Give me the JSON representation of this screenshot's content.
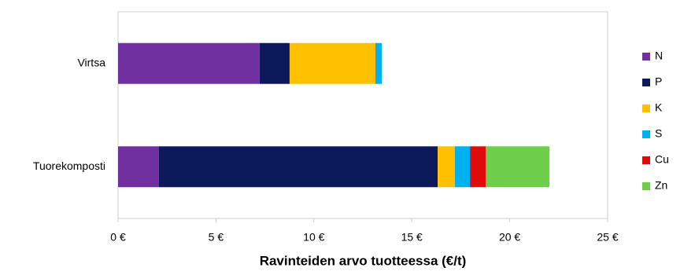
{
  "chart_data": {
    "type": "stacked-barh",
    "categories": [
      "Virtsa",
      "Tuorekomposti"
    ],
    "series": [
      {
        "name": "N",
        "color": "#7030a0",
        "values": [
          7.23,
          2.09
        ]
      },
      {
        "name": "P",
        "color": "#0c1a5c",
        "values": [
          1.53,
          14.23
        ]
      },
      {
        "name": "K",
        "color": "#ffc000",
        "values": [
          4.38,
          0.88
        ]
      },
      {
        "name": "S",
        "color": "#00b0f0",
        "values": [
          0.33,
          0.77
        ]
      },
      {
        "name": "Cu",
        "color": "#e00c0c",
        "values": [
          0,
          0.8
        ]
      },
      {
        "name": "Zn",
        "color": "#6fcf4a",
        "values": [
          0,
          3.26
        ]
      }
    ],
    "xlabel": "Ravinteiden arvo tuotteessa (€/t)",
    "xlim": [
      0,
      25
    ],
    "xticks": [
      {
        "value": 0,
        "label": "0 €"
      },
      {
        "value": 5,
        "label": "5 €"
      },
      {
        "value": 10,
        "label": "10 €"
      },
      {
        "value": 15,
        "label": "15 €"
      },
      {
        "value": 20,
        "label": "20 €"
      },
      {
        "value": 25,
        "label": "25 €"
      }
    ],
    "legend": "right"
  }
}
